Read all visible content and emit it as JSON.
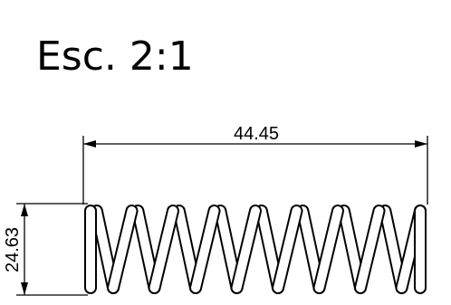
{
  "drawing": {
    "scale_label": "Esc. 2:1",
    "length_dimension": "44.45",
    "diameter_dimension": "24.63",
    "spring": {
      "active_coils": 8,
      "coil_color": "#000000"
    }
  }
}
